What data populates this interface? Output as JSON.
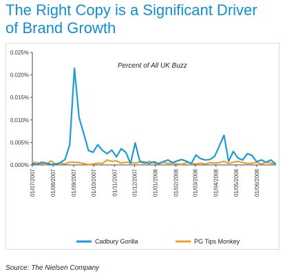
{
  "title": {
    "line1": "The Right Copy is a Significant Driver",
    "line2": "of Brand Growth"
  },
  "source": "Source: The Nielsen Company",
  "colors": {
    "title": "#0f8fcf",
    "cadbury": "#1a9ad6",
    "pgtips": "#f39c2a"
  },
  "chart_data": {
    "type": "line",
    "annotation": "Percent of All UK Buzz",
    "ylim": [
      0,
      0.025
    ],
    "yticks": [
      "0.000%",
      "0.005%",
      "0.010%",
      "0.015%",
      "0.020%",
      "0.025%"
    ],
    "ytick_values": [
      0,
      0.005,
      0.01,
      0.015,
      0.02,
      0.025
    ],
    "xlim": [
      "2007-07-01",
      "2008-06-30"
    ],
    "xticks": [
      "01/07/2007",
      "01/08/2007",
      "01/09/2007",
      "01/10/2007",
      "01/11/2007",
      "01/12/2007",
      "01/01/2008",
      "01/02/2008",
      "01/03/2008",
      "01/04/2008",
      "01/05/2008",
      "01/06/2008"
    ],
    "xtick_dates": [
      "2007-07-01",
      "2007-08-01",
      "2007-09-01",
      "2007-10-01",
      "2007-11-01",
      "2007-12-01",
      "2008-01-01",
      "2008-02-01",
      "2008-03-01",
      "2008-04-01",
      "2008-05-01",
      "2008-06-01"
    ],
    "grid": false,
    "legend": "bottom",
    "series": [
      {
        "name": "Cadbury Gorilla",
        "color": "#1a9ad6",
        "x": [
          "2007-07-01",
          "2007-07-08",
          "2007-07-15",
          "2007-07-22",
          "2007-07-29",
          "2007-08-05",
          "2007-08-12",
          "2007-08-19",
          "2007-08-26",
          "2007-09-02",
          "2007-09-09",
          "2007-09-16",
          "2007-09-23",
          "2007-09-30",
          "2007-10-07",
          "2007-10-14",
          "2007-10-21",
          "2007-10-28",
          "2007-11-04",
          "2007-11-11",
          "2007-11-18",
          "2007-11-25",
          "2007-12-02",
          "2007-12-09",
          "2007-12-16",
          "2007-12-23",
          "2007-12-30",
          "2008-01-06",
          "2008-01-13",
          "2008-01-20",
          "2008-01-27",
          "2008-02-03",
          "2008-02-10",
          "2008-02-17",
          "2008-02-24",
          "2008-03-02",
          "2008-03-09",
          "2008-03-16",
          "2008-03-23",
          "2008-03-30",
          "2008-04-06",
          "2008-04-13",
          "2008-04-20",
          "2008-04-27",
          "2008-05-04",
          "2008-05-11",
          "2008-05-18",
          "2008-05-25",
          "2008-06-01",
          "2008-06-08",
          "2008-06-15",
          "2008-06-22",
          "2008-06-29"
        ],
        "values": [
          0.0003,
          0.0001,
          0.0006,
          0.0004,
          0.0001,
          0.0002,
          0.0005,
          0.0012,
          0.0045,
          0.0215,
          0.0105,
          0.007,
          0.0032,
          0.0028,
          0.0045,
          0.0032,
          0.0025,
          0.0033,
          0.0018,
          0.0036,
          0.0028,
          0.0003,
          0.0049,
          0.0008,
          0.0006,
          0.0003,
          0.0007,
          0.0003,
          0.0007,
          0.0011,
          0.0005,
          0.0009,
          0.0012,
          0.0008,
          0.0003,
          0.0022,
          0.0014,
          0.0011,
          0.0012,
          0.0019,
          0.0042,
          0.0066,
          0.0008,
          0.003,
          0.0015,
          0.0011,
          0.0025,
          0.0021,
          0.0007,
          0.0011,
          0.0006,
          0.0011,
          0.0003
        ]
      },
      {
        "name": "PG Tips Monkey",
        "color": "#f39c2a",
        "x": [
          "2007-07-01",
          "2007-07-08",
          "2007-07-15",
          "2007-07-22",
          "2007-07-29",
          "2007-08-05",
          "2007-08-12",
          "2007-08-19",
          "2007-08-26",
          "2007-09-02",
          "2007-09-09",
          "2007-09-16",
          "2007-09-23",
          "2007-09-30",
          "2007-10-07",
          "2007-10-14",
          "2007-10-21",
          "2007-10-28",
          "2007-11-04",
          "2007-11-11",
          "2007-11-18",
          "2007-11-25",
          "2007-12-02",
          "2007-12-09",
          "2007-12-16",
          "2007-12-23",
          "2007-12-30",
          "2008-01-06",
          "2008-01-13",
          "2008-01-20",
          "2008-01-27",
          "2008-02-03",
          "2008-02-10",
          "2008-02-17",
          "2008-02-24",
          "2008-03-02",
          "2008-03-09",
          "2008-03-16",
          "2008-03-23",
          "2008-03-30",
          "2008-04-06",
          "2008-04-13",
          "2008-04-20",
          "2008-04-27",
          "2008-05-04",
          "2008-05-11",
          "2008-05-18",
          "2008-05-25",
          "2008-06-01",
          "2008-06-08",
          "2008-06-15",
          "2008-06-22",
          "2008-06-29"
        ],
        "values": [
          0.0006,
          0.0005,
          0.0002,
          0.0001,
          0.0009,
          0.0002,
          0.0004,
          0.0002,
          0.0006,
          0.0006,
          0.0005,
          0.0003,
          0.0001,
          0.0002,
          0.0004,
          0.0003,
          0.0011,
          0.0008,
          0.0009,
          0.0004,
          0.0006,
          0.0005,
          0.0004,
          0.0006,
          0.0003,
          0.0008,
          0.0004,
          0.0002,
          0.0006,
          0.0003,
          0.0004,
          0.0002,
          0.0001,
          0.0005,
          0.0004,
          0.0002,
          0.0004,
          0.0002,
          0.0005,
          0.0004,
          0.0005,
          0.0008,
          0.0003,
          0.0006,
          0.0008,
          0.0005,
          0.0003,
          0.0004,
          0.0006,
          0.0002,
          0.0006,
          0.0004,
          0.0002
        ]
      }
    ]
  }
}
